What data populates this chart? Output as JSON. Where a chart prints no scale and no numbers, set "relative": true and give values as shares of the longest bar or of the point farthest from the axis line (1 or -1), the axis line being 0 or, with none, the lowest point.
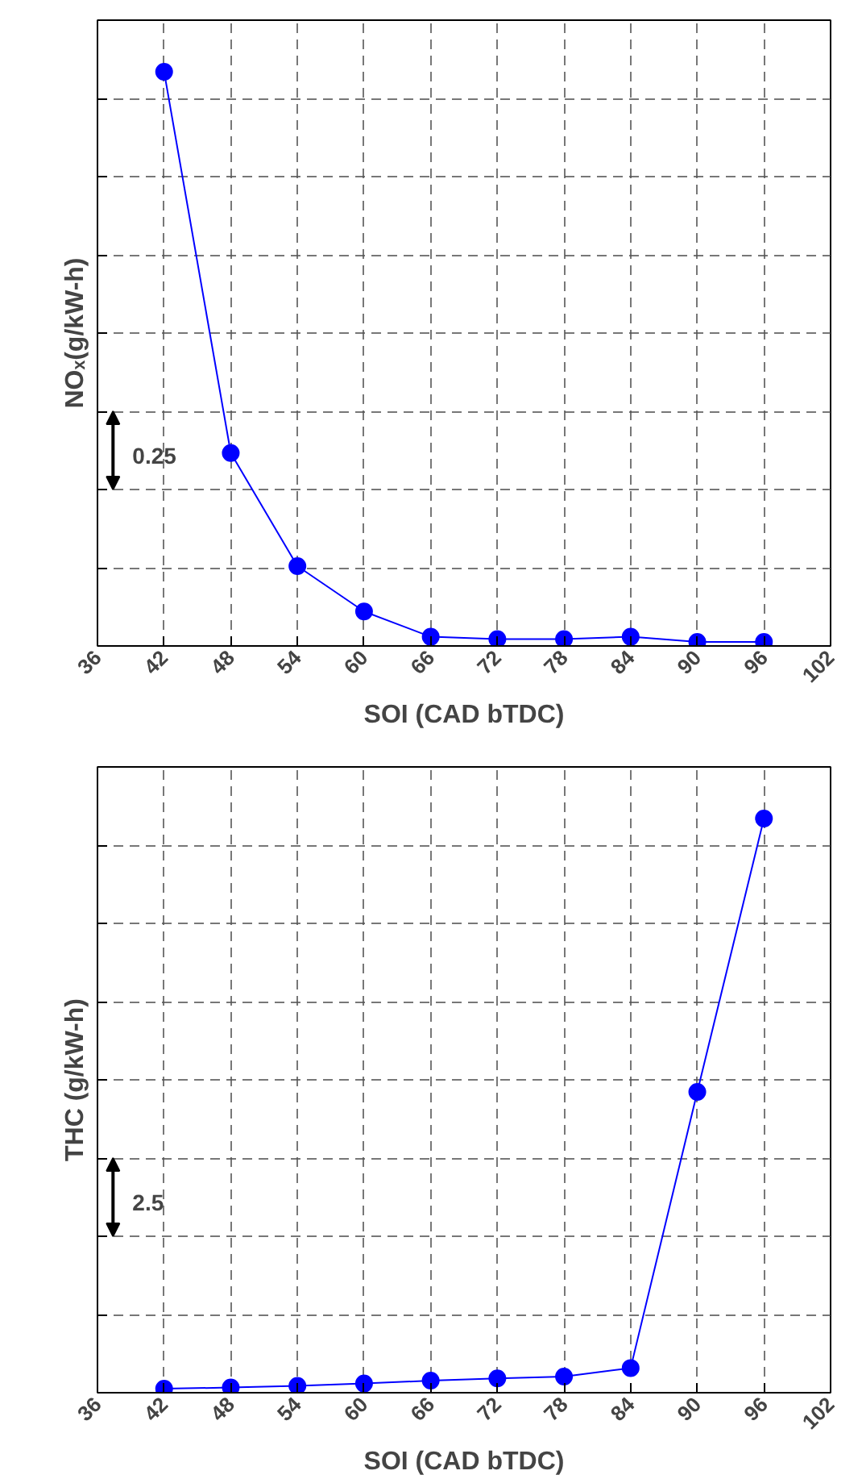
{
  "chart_data": [
    {
      "type": "line",
      "ylabel": "NOₓ(g/kW-h)",
      "xlabel": "SOI (CAD bTDC)",
      "relative": true,
      "x": [
        42,
        48,
        54,
        60,
        66,
        72,
        78,
        84,
        90,
        96
      ],
      "series": [
        {
          "color": "#0000ff",
          "values": [
            1,
            0.336,
            0.139,
            0.06,
            0.016,
            0.012,
            0.012,
            0.016,
            0.007,
            0.007
          ]
        }
      ],
      "xlim": [
        36,
        102
      ],
      "xticks": [
        36,
        42,
        48,
        54,
        60,
        66,
        72,
        78,
        84,
        90,
        96,
        102
      ],
      "annotations": [
        "0.25"
      ],
      "grid": true,
      "marker": "circle",
      "line_style": "solid"
    },
    {
      "type": "line",
      "ylabel": "THC (g/kW-h)",
      "xlabel": "SOI (CAD bTDC)",
      "relative": true,
      "x": [
        42,
        48,
        54,
        60,
        66,
        72,
        78,
        84,
        90,
        96
      ],
      "series": [
        {
          "color": "#0000ff",
          "values": [
            0.007,
            0.009,
            0.012,
            0.016,
            0.021,
            0.025,
            0.028,
            0.043,
            0.524,
            1
          ]
        }
      ],
      "xlim": [
        36,
        102
      ],
      "xticks": [
        36,
        42,
        48,
        54,
        60,
        66,
        72,
        78,
        84,
        90,
        96,
        102
      ],
      "annotations": [
        "2.5"
      ],
      "grid": true,
      "marker": "circle",
      "line_style": "solid"
    }
  ]
}
